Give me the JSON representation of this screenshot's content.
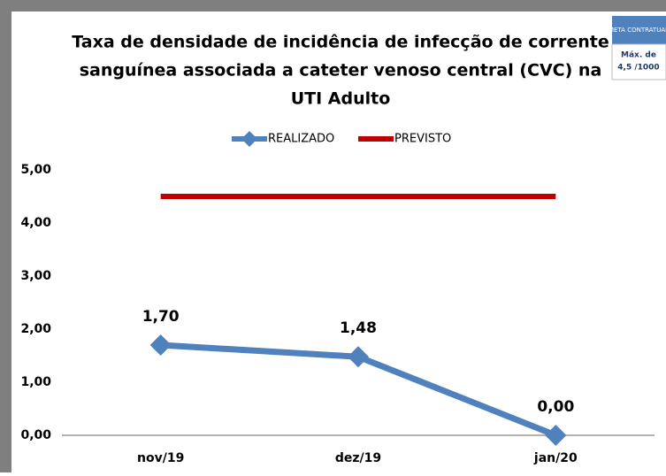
{
  "chart_data": {
    "type": "line",
    "title": [
      "Taxa de densidade de incidência de infecção de corrente",
      "sanguínea associada a cateter venoso central (CVC) na",
      "UTI Adulto"
    ],
    "annotation": {
      "header": "META CONTRATUAL",
      "text": [
        "Máx. de",
        "4,5 /1000"
      ]
    },
    "categories": [
      "nov/19",
      "dez/19",
      "jan/20"
    ],
    "series": [
      {
        "name": "REALIZADO",
        "color": "#4f81bd",
        "values": [
          1.7,
          1.48,
          0.0
        ],
        "value_labels": [
          "1,70",
          "1,48",
          "0,00"
        ],
        "marker": "diamond"
      },
      {
        "name": "PREVISTO",
        "color": "#c00000",
        "values": [
          4.5,
          4.5,
          4.5
        ]
      }
    ],
    "ylim": [
      0,
      5
    ],
    "yticks": [
      {
        "value": 0,
        "label": "0,00"
      },
      {
        "value": 1,
        "label": "1,00"
      },
      {
        "value": 2,
        "label": "2,00"
      },
      {
        "value": 3,
        "label": "3,00"
      },
      {
        "value": 4,
        "label": "4,00"
      },
      {
        "value": 5,
        "label": "5,00"
      }
    ],
    "legend": "top",
    "grid": false
  }
}
